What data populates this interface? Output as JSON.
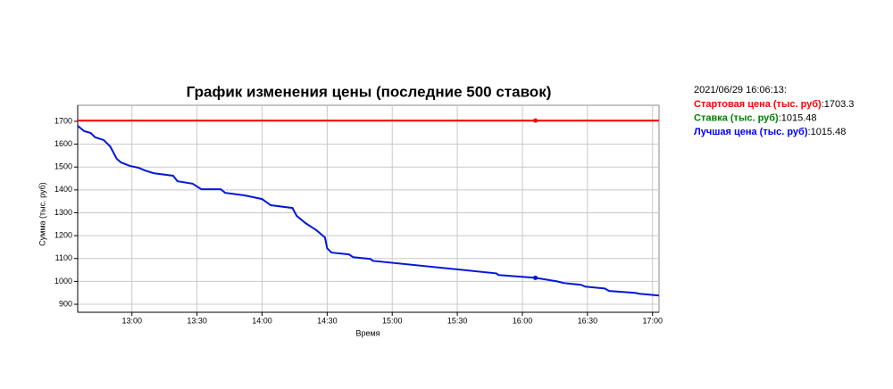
{
  "chart_data": {
    "type": "line",
    "title": "График изменения цены (последние 500 ставок)",
    "x_label": "Время",
    "y_label": "Сумма (тыс. руб)",
    "xlim": [
      "12:35",
      "17:03"
    ],
    "xticks": [
      "13:00",
      "13:30",
      "14:00",
      "14:30",
      "15:00",
      "15:30",
      "16:00",
      "16:30",
      "17:00"
    ],
    "ylim": [
      865,
      1770
    ],
    "yticks": [
      900,
      1000,
      1100,
      1200,
      1300,
      1400,
      1500,
      1600,
      1700
    ],
    "grid": true,
    "series": [
      {
        "name": "Стартовая цена (тыс. руб)",
        "color": "#ff0000",
        "x": [
          "12:35",
          "16:06",
          "17:03"
        ],
        "values": [
          1703.3,
          1703.3,
          1703.3
        ],
        "marker_index": 1
      },
      {
        "name": "Лучшая цена (тыс. руб)",
        "color": "#0018d8",
        "x": [
          "12:35",
          "12:38",
          "12:41",
          "12:43",
          "12:47",
          "12:50",
          "12:53",
          "12:55",
          "12:59",
          "13:03",
          "13:06",
          "13:10",
          "13:19",
          "13:21",
          "13:28",
          "13:32",
          "13:41",
          "13:43",
          "13:52",
          "14:00",
          "14:04",
          "14:14",
          "14:16",
          "14:20",
          "14:25",
          "14:29",
          "14:30",
          "14:32",
          "14:40",
          "14:42",
          "14:50",
          "14:51",
          "15:48",
          "15:49",
          "16:06",
          "16:16",
          "16:19",
          "16:27",
          "16:29",
          "16:38",
          "16:40",
          "16:52",
          "16:54",
          "17:03"
        ],
        "values": [
          1680,
          1657,
          1649,
          1630,
          1618,
          1590,
          1536,
          1520,
          1505,
          1497,
          1485,
          1473,
          1462,
          1438,
          1427,
          1403,
          1403,
          1387,
          1376,
          1360,
          1333,
          1321,
          1286,
          1255,
          1224,
          1192,
          1145,
          1126,
          1118,
          1106,
          1098,
          1090,
          1035,
          1028,
          1015.48,
          1000,
          993,
          985,
          977,
          969,
          958,
          950,
          946,
          938
        ],
        "marker_index": 34
      }
    ]
  },
  "info": {
    "timestamp": "2021/06/29 16:06:13:",
    "separator": ":",
    "rows": [
      {
        "label": "Стартовая цена (тыс. руб)",
        "value": "1703.3",
        "color": "#ff0000"
      },
      {
        "label": "Ставка (тыс. руб)",
        "value": "1015.48",
        "color": "#008000"
      },
      {
        "label": "Лучшая цена (тыс. руб)",
        "value": "1015.48",
        "color": "#0000ff"
      }
    ]
  }
}
